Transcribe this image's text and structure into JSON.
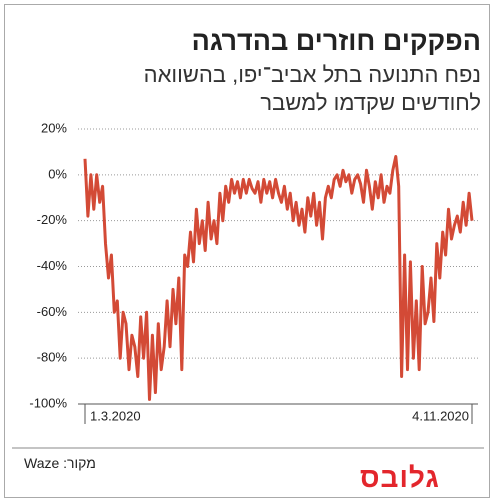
{
  "chart_data": {
    "type": "line",
    "title": "הפקקים חוזרים בהדרגה",
    "subtitle": [
      "נפח התנועה בתל אביב־יפו, בהשוואה",
      "לחודשים שקדמו למשבר"
    ],
    "source": "מקור: Waze",
    "logo": "גלובס",
    "categories": [
      "1.3.2020",
      null,
      null,
      null,
      null,
      null,
      null,
      null,
      null,
      null,
      null,
      null,
      null,
      null,
      null,
      null,
      null,
      null,
      null,
      null,
      null,
      null,
      null,
      null,
      null,
      null,
      null,
      null,
      null,
      null,
      null,
      null,
      null,
      null,
      null,
      null,
      null,
      null,
      null,
      null,
      null,
      null,
      null,
      null,
      null,
      null,
      null,
      null,
      null,
      null,
      null,
      null,
      null,
      null,
      null,
      null,
      null,
      null,
      null,
      null,
      null,
      null,
      null,
      null,
      null,
      null,
      null,
      null,
      null,
      null,
      null,
      null,
      null,
      null,
      null,
      null,
      null,
      null,
      null,
      null,
      null,
      null,
      null,
      null,
      null,
      null,
      null,
      null,
      null,
      null,
      null,
      null,
      null,
      null,
      null,
      null,
      null,
      null,
      null,
      null,
      null,
      null,
      null,
      null,
      null,
      null,
      null,
      null,
      null,
      null,
      null,
      null,
      null,
      null,
      null,
      null,
      null,
      null,
      null,
      null,
      null,
      null,
      null,
      null,
      null,
      null,
      null,
      null,
      null,
      null,
      null,
      null,
      "4.11.2020"
    ],
    "series": [
      {
        "color": "#d34a36",
        "values": [
          7,
          -18,
          0,
          -15,
          0,
          -12,
          -5,
          -30,
          -45,
          -35,
          -60,
          -55,
          -80,
          -60,
          -65,
          -85,
          -70,
          -75,
          -88,
          -62,
          -80,
          -60,
          -98,
          -70,
          -95,
          -65,
          -85,
          -75,
          -55,
          -75,
          -50,
          -65,
          -45,
          -85,
          -35,
          -40,
          -25,
          -38,
          -15,
          -30,
          -20,
          -33,
          -12,
          -28,
          -20,
          -30,
          -8,
          -20,
          -5,
          -12,
          -2,
          -8,
          -3,
          -10,
          -2,
          -8,
          -2,
          -6,
          -8,
          -3,
          -12,
          -2,
          -8,
          -3,
          -10,
          -2,
          -8,
          -12,
          -5,
          -15,
          -8,
          -20,
          -12,
          -22,
          -15,
          -25,
          -10,
          -18,
          -8,
          -22,
          -12,
          -28,
          -10,
          -5,
          -10,
          -2,
          0,
          -5,
          2,
          -3,
          0,
          -8,
          -2,
          0,
          -4,
          -12,
          2,
          -5,
          -15,
          -3,
          -10,
          0,
          -12,
          -5,
          -8,
          2,
          8,
          -5,
          -88,
          -35,
          -85,
          -38,
          -80,
          -55,
          -85,
          -40,
          -65,
          -60,
          -45,
          -64,
          -30,
          -45,
          -25,
          -35,
          -15,
          -28,
          -22,
          -18,
          -25,
          -12,
          -22,
          -8,
          -20
        ]
      }
    ],
    "ylim": [
      -100,
      20
    ],
    "yticks": [
      {
        "value": 20,
        "label": "20%"
      },
      {
        "value": 0,
        "label": "0%"
      },
      {
        "value": -20,
        "label": "-20%"
      },
      {
        "value": -40,
        "label": "-40%"
      },
      {
        "value": -60,
        "label": "-60%"
      },
      {
        "value": -80,
        "label": "-80%"
      },
      {
        "value": -100,
        "label": "-100%"
      }
    ],
    "grid": true
  }
}
